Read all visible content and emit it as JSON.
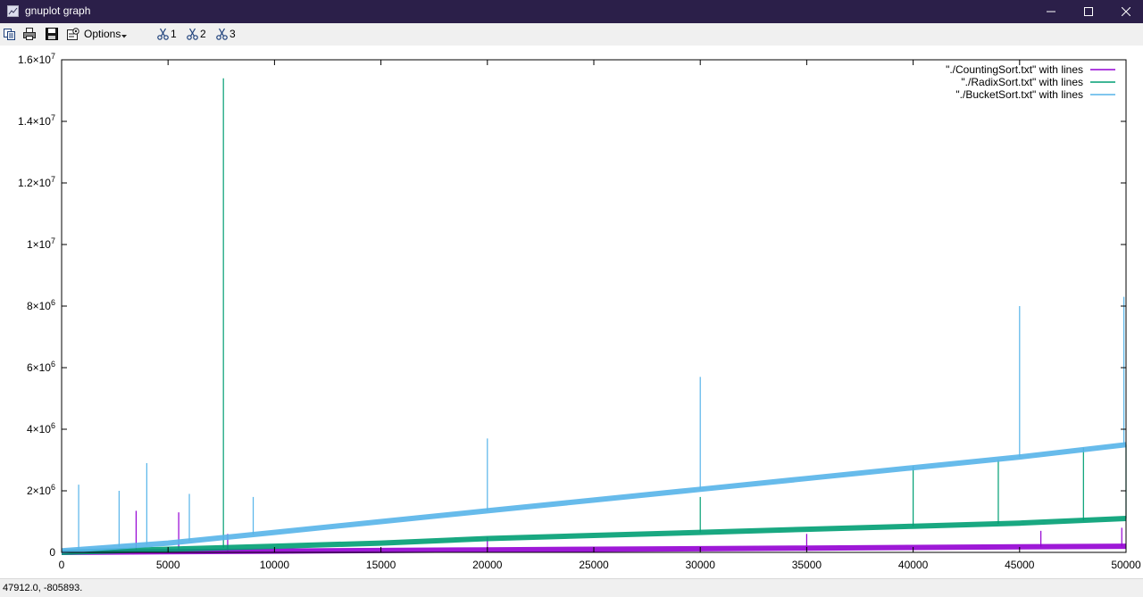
{
  "window": {
    "title": "gnuplot graph",
    "icon": "gnuplot-graph-icon",
    "controls": [
      "minimize-icon",
      "maximize-icon",
      "close-icon"
    ]
  },
  "toolbar": {
    "icons": [
      "copy-icon",
      "print-icon",
      "save-icon",
      "options-icon"
    ],
    "options_label": "Options",
    "plot_toggles": [
      {
        "label": "1",
        "icon": "plot-toggle-icon"
      },
      {
        "label": "2",
        "icon": "plot-toggle-icon"
      },
      {
        "label": "3",
        "icon": "plot-toggle-icon"
      }
    ]
  },
  "status": {
    "coords": "47912.0, -805893."
  },
  "chart_data": {
    "type": "line",
    "xlim": [
      0,
      50000
    ],
    "ylim": [
      0,
      16000000
    ],
    "x_ticks": [
      {
        "value": 0,
        "label": "0"
      },
      {
        "value": 5000,
        "label": "5000"
      },
      {
        "value": 10000,
        "label": "10000"
      },
      {
        "value": 15000,
        "label": "15000"
      },
      {
        "value": 20000,
        "label": "20000"
      },
      {
        "value": 25000,
        "label": "25000"
      },
      {
        "value": 30000,
        "label": "30000"
      },
      {
        "value": 35000,
        "label": "35000"
      },
      {
        "value": 40000,
        "label": "40000"
      },
      {
        "value": 45000,
        "label": "45000"
      },
      {
        "value": 50000,
        "label": "50000"
      }
    ],
    "y_ticks": [
      {
        "value": 0,
        "label": "0",
        "exp": ""
      },
      {
        "value": 2000000,
        "label": "2×10",
        "exp": "6"
      },
      {
        "value": 4000000,
        "label": "4×10",
        "exp": "6"
      },
      {
        "value": 6000000,
        "label": "6×10",
        "exp": "6"
      },
      {
        "value": 8000000,
        "label": "8×10",
        "exp": "6"
      },
      {
        "value": 10000000,
        "label": "1×10",
        "exp": "7"
      },
      {
        "value": 12000000,
        "label": "1.2×10",
        "exp": "7"
      },
      {
        "value": 14000000,
        "label": "1.4×10",
        "exp": "7"
      },
      {
        "value": 16000000,
        "label": "1.6×10",
        "exp": "7"
      }
    ],
    "legend_position": "top-right",
    "series": [
      {
        "name": "\"./CountingSort.txt\" with lines",
        "color": "#9400d3",
        "x": [
          0,
          5000,
          10000,
          15000,
          20000,
          25000,
          30000,
          35000,
          40000,
          45000,
          50000
        ],
        "y": [
          0,
          20000,
          40000,
          60000,
          80000,
          100000,
          120000,
          140000,
          160000,
          180000,
          200000
        ],
        "spikes": [
          [
            3500,
            1350000
          ],
          [
            5500,
            1300000
          ],
          [
            7800,
            600000
          ],
          [
            20000,
            500000
          ],
          [
            35000,
            600000
          ],
          [
            46000,
            700000
          ],
          [
            49800,
            800000
          ]
        ]
      },
      {
        "name": "\"./RadixSort.txt\" with lines",
        "color": "#009e73",
        "x": [
          0,
          5000,
          10000,
          15000,
          20000,
          25000,
          30000,
          35000,
          40000,
          45000,
          50000
        ],
        "y": [
          0,
          100000,
          200000,
          300000,
          450000,
          550000,
          650000,
          750000,
          850000,
          950000,
          1100000
        ],
        "spikes": [
          [
            7600,
            15400000
          ],
          [
            30000,
            1800000
          ],
          [
            40000,
            2800000
          ],
          [
            44000,
            3000000
          ],
          [
            48000,
            3400000
          ],
          [
            50000,
            3500000
          ]
        ]
      },
      {
        "name": "\"./BucketSort.txt\" with lines",
        "color": "#56b4e9",
        "x": [
          0,
          5000,
          10000,
          15000,
          20000,
          25000,
          30000,
          35000,
          40000,
          45000,
          50000
        ],
        "y": [
          50000,
          300000,
          650000,
          1000000,
          1350000,
          1700000,
          2050000,
          2400000,
          2750000,
          3100000,
          3500000
        ],
        "spikes": [
          [
            800,
            2200000
          ],
          [
            2700,
            2000000
          ],
          [
            4000,
            2900000
          ],
          [
            6000,
            1900000
          ],
          [
            9000,
            1800000
          ],
          [
            20000,
            3700000
          ],
          [
            30000,
            5700000
          ],
          [
            45000,
            8000000
          ],
          [
            49900,
            8300000
          ]
        ]
      }
    ]
  }
}
